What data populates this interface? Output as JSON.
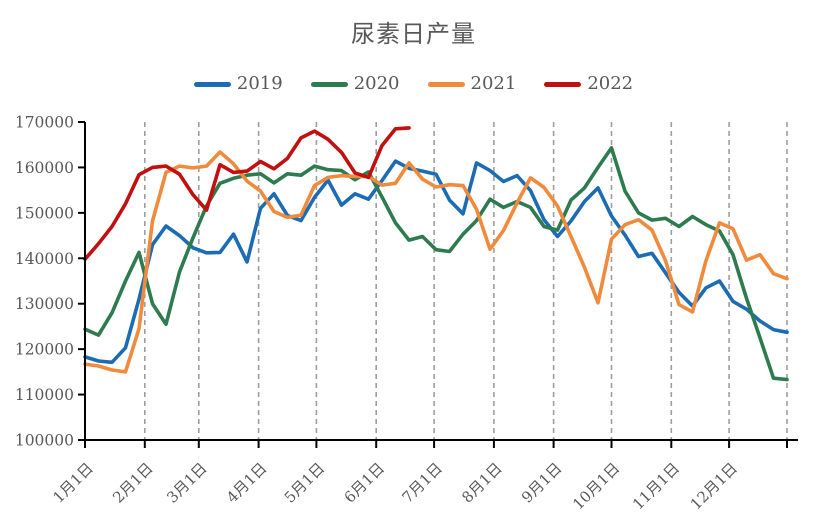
{
  "chart": {
    "background": "#FFFFFF",
    "text_color": "#595959",
    "axis_color": "#000000"
  },
  "chart_data": {
    "type": "line",
    "title": "尿素日产量",
    "xlabel": "",
    "ylabel": "",
    "legend": {
      "position": "top-center",
      "entries": [
        "2019",
        "2020",
        "2021",
        "2022"
      ]
    },
    "grid": {
      "vertical_dashed_at_month_starts": true,
      "horizontal": false,
      "color": "#9E9E9E"
    },
    "y_axis": {
      "min": 100000,
      "max": 170000,
      "tick_step": 10000,
      "tick_labels": [
        "100000",
        "110000",
        "120000",
        "130000",
        "140000",
        "150000",
        "160000",
        "170000"
      ]
    },
    "x_axis": {
      "tick_labels": [
        "1月1日",
        "2月1日",
        "3月1日",
        "4月1日",
        "5月1日",
        "6月1日",
        "7月1日",
        "8月1日",
        "9月1日",
        "10月1日",
        "11月1日",
        "12月1日"
      ]
    },
    "dates": [
      "1/1",
      "1/8",
      "1/15",
      "1/22",
      "1/29",
      "2/5",
      "2/12",
      "2/19",
      "2/26",
      "3/5",
      "3/12",
      "3/19",
      "3/26",
      "4/2",
      "4/9",
      "4/16",
      "4/23",
      "4/30",
      "5/7",
      "5/14",
      "5/21",
      "5/28",
      "6/4",
      "6/11",
      "6/18",
      "6/25",
      "7/2",
      "7/9",
      "7/16",
      "7/23",
      "7/30",
      "8/6",
      "8/13",
      "8/20",
      "8/27",
      "9/3",
      "9/10",
      "9/17",
      "9/24",
      "10/1",
      "10/8",
      "10/15",
      "10/22",
      "10/29",
      "11/5",
      "11/12",
      "11/19",
      "11/26",
      "12/3",
      "12/10",
      "12/17",
      "12/24",
      "12/31"
    ],
    "series": [
      {
        "name": "2019",
        "color": "#1B6CB4",
        "values": [
          118300,
          117400,
          117100,
          120300,
          131000,
          143000,
          147100,
          145000,
          142300,
          141200,
          141300,
          145300,
          139200,
          151000,
          154200,
          149400,
          148300,
          153400,
          157200,
          151700,
          154200,
          153000,
          157100,
          161400,
          159800,
          159200,
          158500,
          152800,
          149800,
          161000,
          159300,
          156900,
          158200,
          154900,
          148500,
          144800,
          148200,
          152500,
          155500,
          149300,
          145100,
          140400,
          141100,
          136800,
          132500,
          129500,
          133500,
          135000,
          130500,
          128800,
          126200,
          124300,
          123700
        ]
      },
      {
        "name": "2020",
        "color": "#2E7B4F",
        "values": [
          124400,
          123100,
          128000,
          135000,
          141300,
          130000,
          125500,
          137000,
          144500,
          151500,
          156500,
          157600,
          158300,
          158600,
          156600,
          158600,
          158300,
          160300,
          159500,
          159300,
          157300,
          159000,
          153500,
          147800,
          144000,
          144800,
          141900,
          141500,
          145300,
          148300,
          153000,
          151200,
          152500,
          151200,
          147000,
          146200,
          152800,
          155500,
          160000,
          164300,
          154800,
          150000,
          148400,
          148800,
          147000,
          149200,
          147400,
          146000,
          140800,
          131200,
          122500,
          113600,
          113300
        ]
      },
      {
        "name": "2021",
        "color": "#F08A3D",
        "values": [
          116700,
          116300,
          115400,
          115000,
          124500,
          148200,
          158900,
          160300,
          159900,
          160300,
          163400,
          160800,
          157000,
          154800,
          150300,
          149000,
          149500,
          156000,
          157800,
          158200,
          158000,
          158000,
          156100,
          156500,
          161000,
          157400,
          155700,
          156200,
          156000,
          150800,
          142000,
          146100,
          152200,
          157700,
          155600,
          151500,
          144800,
          138000,
          130200,
          144200,
          147400,
          148500,
          146200,
          139500,
          129800,
          128200,
          139500,
          147800,
          146500,
          139600,
          140800,
          136600,
          135500
        ]
      },
      {
        "name": "2022",
        "color": "#C11010",
        "values": [
          139800,
          143200,
          147000,
          152000,
          158400,
          160000,
          160300,
          158500,
          154000,
          150600,
          160600,
          158900,
          159200,
          161300,
          159700,
          162000,
          166500,
          168000,
          166200,
          163300,
          158800,
          157800,
          164800,
          168500,
          168700
        ]
      }
    ]
  }
}
